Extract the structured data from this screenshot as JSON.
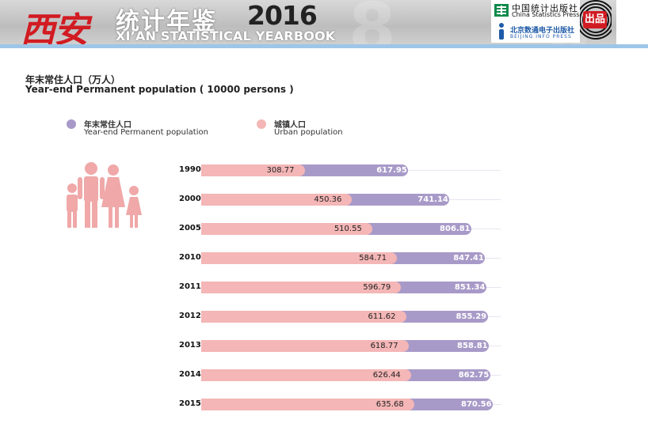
{
  "header": {
    "logo_cn": "西安",
    "title_cn": "统计年鉴",
    "year": "2016",
    "title_en": "XI’AN STATISTICAL YEARBOOK",
    "publisher1_cn": "中国统计出版社",
    "publisher1_en": "China Statistics Press",
    "publisher2_cn": "北京数通电子出版社",
    "publisher2_en": "BEIJING INFO PRESS",
    "stamp": "出品"
  },
  "colors": {
    "total": "#a89ac8",
    "urban": "#f4b6b6",
    "accent_red": "#d21b22",
    "blue_bar": "#9ec6e8",
    "people_icon": "#f0a8a8"
  },
  "chart_data": {
    "type": "bar",
    "title": "年末常住人口（万人）",
    "subtitle": "Year-end Permanent population ( 10000 persons )",
    "legend": [
      {
        "cn": "年末常住人口",
        "en": "Year-end Permanent population",
        "color": "#a89ac8"
      },
      {
        "cn": "城镇人口",
        "en": "Urban population",
        "color": "#f4b6b6"
      }
    ],
    "legend_position": "top",
    "categories": [
      "1990",
      "2000",
      "2005",
      "2010",
      "2011",
      "2012",
      "2013",
      "2014",
      "2015"
    ],
    "series": [
      {
        "name": "年末常住人口",
        "values": [
          "617.95",
          "741.14",
          "806.81",
          "847.41",
          "851.34",
          "855.29",
          "858.81",
          "862.75",
          "870.56"
        ]
      },
      {
        "name": "城镇人口",
        "values": [
          "308.77",
          "450.36",
          "510.55",
          "584.71",
          "596.79",
          "611.62",
          "618.77",
          "626.44",
          "635.68"
        ]
      }
    ],
    "xlim": [
      0,
      870.56
    ],
    "grid": false
  }
}
